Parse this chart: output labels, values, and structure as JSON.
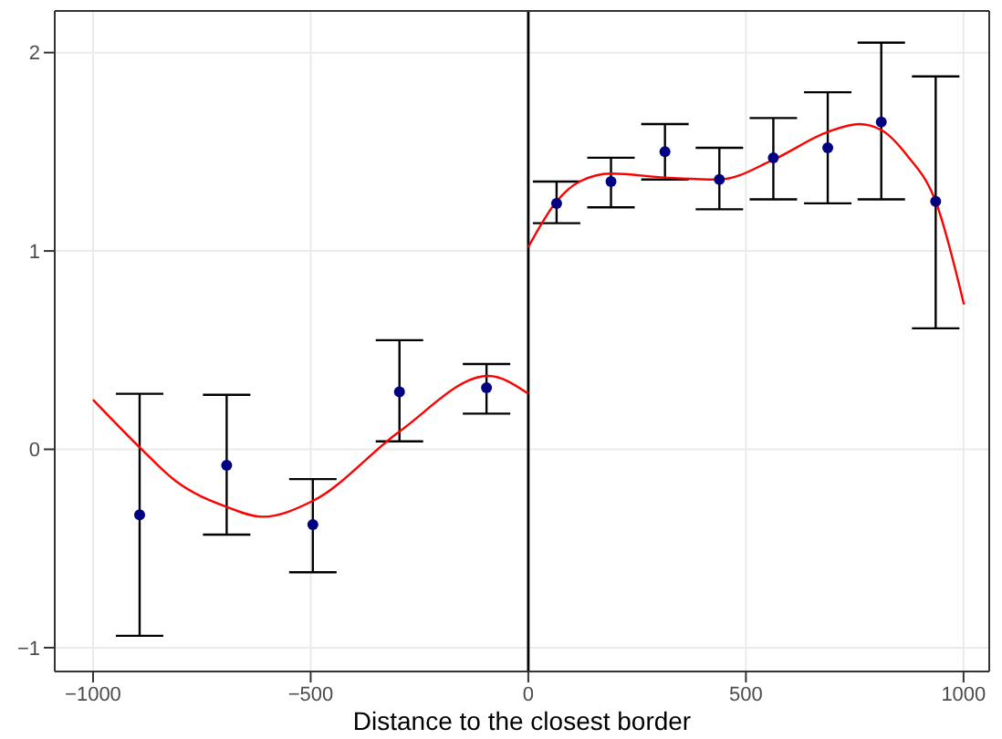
{
  "chart_data": {
    "type": "scatter",
    "xlabel": "Distance to the closest border",
    "xlim": [
      -1088,
      1059
    ],
    "ylim": [
      -1.12,
      2.21
    ],
    "xticks": [
      -1000,
      -500,
      0,
      500,
      1000
    ],
    "yticks": [
      -1,
      0,
      1,
      2
    ],
    "grid": true,
    "legend": false,
    "marker": "circle",
    "ref_lines": [
      {
        "axis": "x",
        "value": 0,
        "color": "#000000"
      }
    ],
    "series": [
      {
        "color": "#000080",
        "x": [
          -893,
          -693,
          -495,
          -296,
          -96,
          65,
          190,
          314,
          439,
          563,
          688,
          811,
          936
        ],
        "values": [
          -0.33,
          -0.08,
          -0.38,
          0.29,
          0.31,
          1.24,
          1.35,
          1.5,
          1.36,
          1.47,
          1.52,
          1.65,
          1.25
        ],
        "errors": [
          [
            -0.94,
            0.28
          ],
          [
            -0.43,
            0.275
          ],
          [
            -0.62,
            -0.15
          ],
          [
            0.04,
            0.55
          ],
          [
            0.18,
            0.43
          ],
          [
            1.14,
            1.35
          ],
          [
            1.22,
            1.47
          ],
          [
            1.36,
            1.64
          ],
          [
            1.21,
            1.52
          ],
          [
            1.26,
            1.67
          ],
          [
            1.24,
            1.8
          ],
          [
            1.26,
            2.05
          ],
          [
            0.61,
            1.88
          ]
        ]
      },
      {
        "type": "line",
        "color": "#ff0000",
        "marker": "none",
        "x": [
          -1000,
          -893,
          -810,
          -693,
          -610,
          -495,
          -296,
          -92,
          0
        ],
        "values": [
          0.25,
          0.01,
          -0.16,
          -0.29,
          -0.34,
          -0.26,
          0.09,
          0.37,
          0.28
        ]
      },
      {
        "type": "line",
        "color": "#ff0000",
        "marker": "none",
        "x": [
          0,
          65,
          118,
          190,
          314,
          439,
          563,
          688,
          760,
          811,
          871,
          936,
          1001
        ],
        "values": [
          1.02,
          1.25,
          1.35,
          1.39,
          1.37,
          1.36,
          1.46,
          1.6,
          1.64,
          1.61,
          1.48,
          1.25,
          0.73
        ]
      }
    ]
  }
}
